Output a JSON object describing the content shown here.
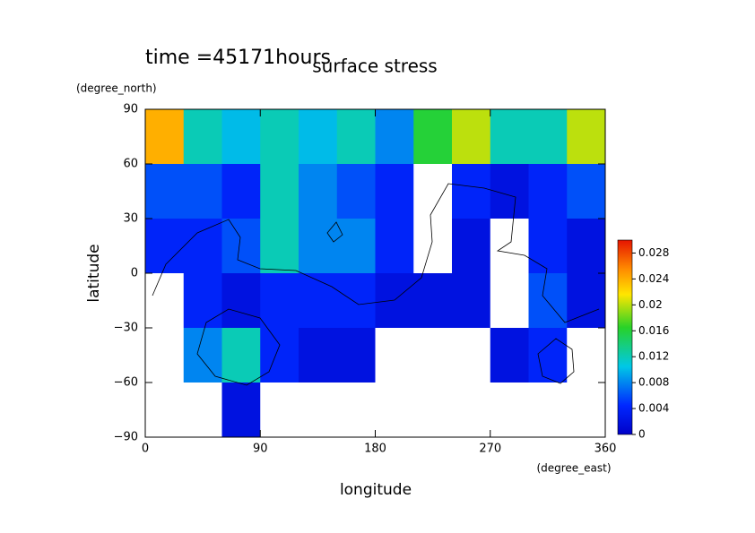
{
  "chart_data": {
    "type": "contour",
    "title": "surface stress",
    "annotation": "time =45171hours",
    "xlabel": "longitude",
    "ylabel": "latitude",
    "x_units": "(degree_east)",
    "y_units": "(degree_north)",
    "xlim": [
      0,
      360
    ],
    "ylim": [
      -90,
      90
    ],
    "xticks": [
      0,
      90,
      180,
      270,
      360
    ],
    "yticks": [
      90,
      60,
      30,
      0,
      {
        "value": -30,
        "label": "−30"
      },
      {
        "value": -60,
        "label": "−60"
      },
      {
        "value": -90,
        "label": "−90"
      }
    ],
    "x": [
      15,
      45,
      75,
      105,
      135,
      165,
      195,
      225,
      255,
      285,
      315,
      345
    ],
    "y": [
      75,
      45,
      15,
      -15,
      -45,
      -75
    ],
    "z": [
      [
        0.024,
        0.012,
        0.01,
        0.012,
        0.01,
        0.012,
        0.008,
        0.016,
        0.02,
        0.012,
        0.012,
        0.02
      ],
      [
        0.006,
        0.006,
        0.004,
        0.012,
        0.008,
        0.006,
        0.004,
        0,
        0.004,
        0.002,
        0.004,
        0.006
      ],
      [
        0.004,
        0.004,
        0.006,
        0.012,
        0.008,
        0.008,
        0.004,
        0,
        0.002,
        0,
        0.004,
        0.002
      ],
      [
        0,
        0.004,
        0.002,
        0.004,
        0.004,
        0.004,
        0.002,
        0.002,
        0.002,
        0,
        0.006,
        0.002
      ],
      [
        0,
        0.008,
        0.012,
        0.004,
        0.002,
        0.002,
        0,
        0,
        0,
        0.002,
        0.004,
        0
      ],
      [
        0,
        0,
        0.002,
        0,
        0,
        0,
        0,
        0,
        0,
        0,
        0,
        0
      ]
    ],
    "colorbar": {
      "lim": [
        0,
        0.03
      ],
      "ticks": [
        0,
        0.004,
        0.008,
        0.012,
        0.016,
        0.02,
        0.024,
        0.028
      ]
    }
  }
}
